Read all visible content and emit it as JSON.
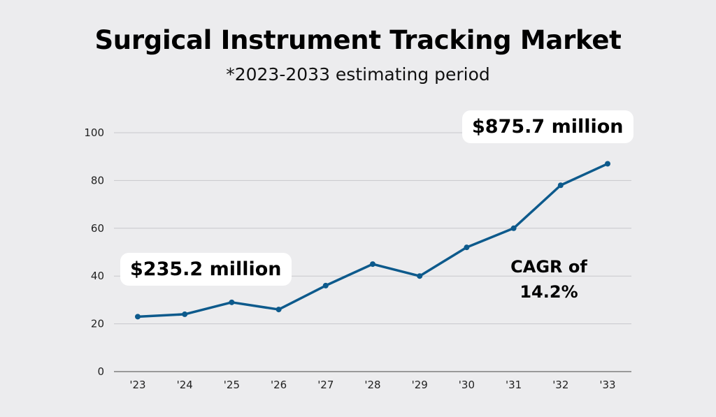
{
  "chart_data": {
    "type": "line",
    "title": "Surgical Instrument Tracking Market",
    "subtitle": "*2023-2033 estimating period",
    "categories": [
      "'23",
      "'24",
      "'25",
      "'26",
      "'27",
      "'28",
      "'29",
      "'30",
      "'31",
      "'32",
      "'33"
    ],
    "series": [
      {
        "values": [
          23,
          24,
          29,
          26,
          36,
          45,
          40,
          52,
          60,
          78,
          87
        ],
        "color": "#0d5a8c"
      }
    ],
    "ylim": [
      0,
      100
    ],
    "yticks": [
      0,
      20,
      40,
      60,
      80,
      100
    ],
    "grid": true,
    "annotations": {
      "start": "$235.2 million",
      "end": "$875.7 million",
      "cagr_line1": "CAGR of",
      "cagr_line2": "14.2%"
    },
    "background": "#ececee"
  }
}
